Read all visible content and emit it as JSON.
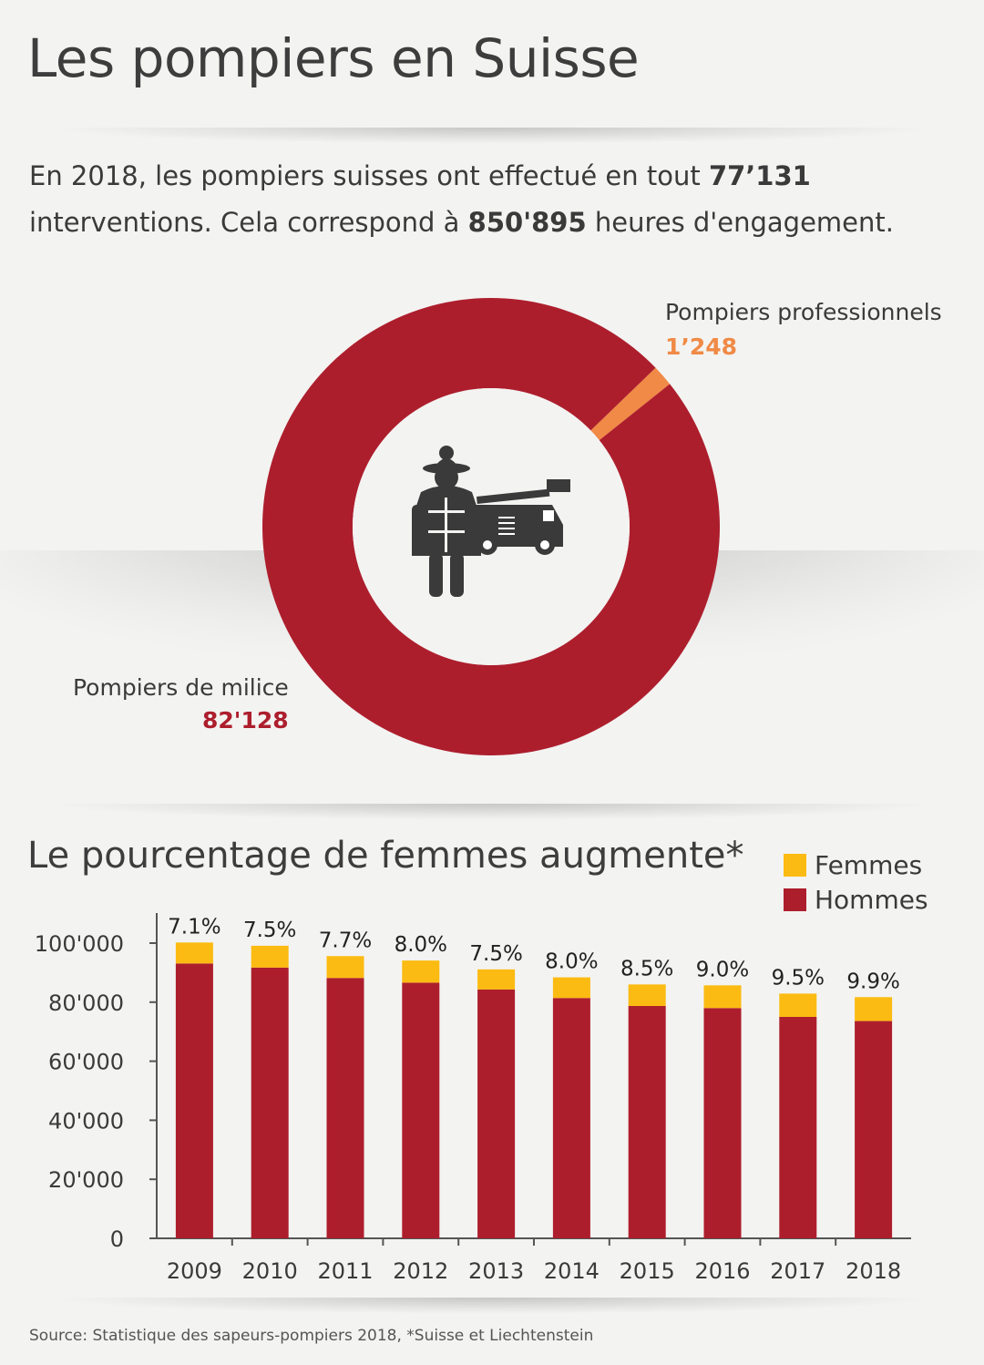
{
  "title": "Les pompiers en Suisse",
  "intro": {
    "part1": "En 2018, les pompiers suisses ont effectué en tout ",
    "bold1": "77’131",
    "part2": " interventions. Cela correspond à ",
    "bold2": "850'895",
    "part3": " heures d'engagement."
  },
  "colors": {
    "milice": "#ad1e2d",
    "professionnels": "#f08a46",
    "femmes": "#fbbb12",
    "hommes": "#ad1e2d",
    "icon": "#3a3a3a"
  },
  "icon": "firefighter-with-fire-truck-icon",
  "donut": {
    "professionnels_label": "Pompiers professionnels",
    "professionnels_value": "1’248",
    "milice_label": "Pompiers de milice",
    "milice_value": "82'128"
  },
  "chart_data": [
    {
      "type": "pie",
      "slices": [
        {
          "name": "Pompiers professionnels",
          "value": 1248
        },
        {
          "name": "Pompiers de milice",
          "value": 82128
        }
      ]
    },
    {
      "type": "bar",
      "stacked": true,
      "title": "Le pourcentage de femmes augmente*",
      "categories": [
        "2009",
        "2010",
        "2011",
        "2012",
        "2013",
        "2014",
        "2015",
        "2016",
        "2017",
        "2018"
      ],
      "series": [
        {
          "name": "Hommes",
          "values": [
            93100,
            91700,
            88200,
            86600,
            84300,
            81400,
            78700,
            78000,
            75000,
            73600
          ]
        },
        {
          "name": "Femmes",
          "values": [
            7100,
            7400,
            7400,
            7500,
            6800,
            7000,
            7300,
            7700,
            7900,
            8100
          ]
        }
      ],
      "data_labels": [
        "7.1%",
        "7.5%",
        "7.7%",
        "8.0%",
        "7.5%",
        "8.0%",
        "8.5%",
        "9.0%",
        "9.5%",
        "9.9%"
      ],
      "yticks": [
        "0",
        "20'000",
        "40'000",
        "60'000",
        "80'000",
        "100'000"
      ],
      "ylim": [
        0,
        115000
      ],
      "legend": "top-right",
      "grid": false
    }
  ],
  "source": "Source: Statistique des sapeurs-pompiers 2018, *Suisse et Liechtenstein"
}
